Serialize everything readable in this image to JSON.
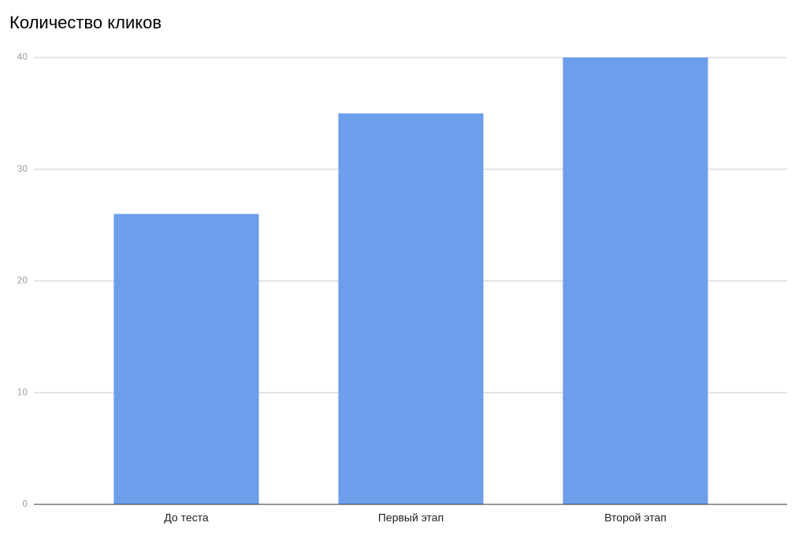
{
  "chart_data": {
    "type": "bar",
    "title": "Количество кликов",
    "categories": [
      "До теста",
      "Первый этап",
      "Второй этап"
    ],
    "values": [
      26,
      35,
      40
    ],
    "color": "#6d9eeb",
    "ylim": [
      0,
      40
    ],
    "yticks": [
      0,
      10,
      20,
      30,
      40
    ],
    "grid": true
  }
}
